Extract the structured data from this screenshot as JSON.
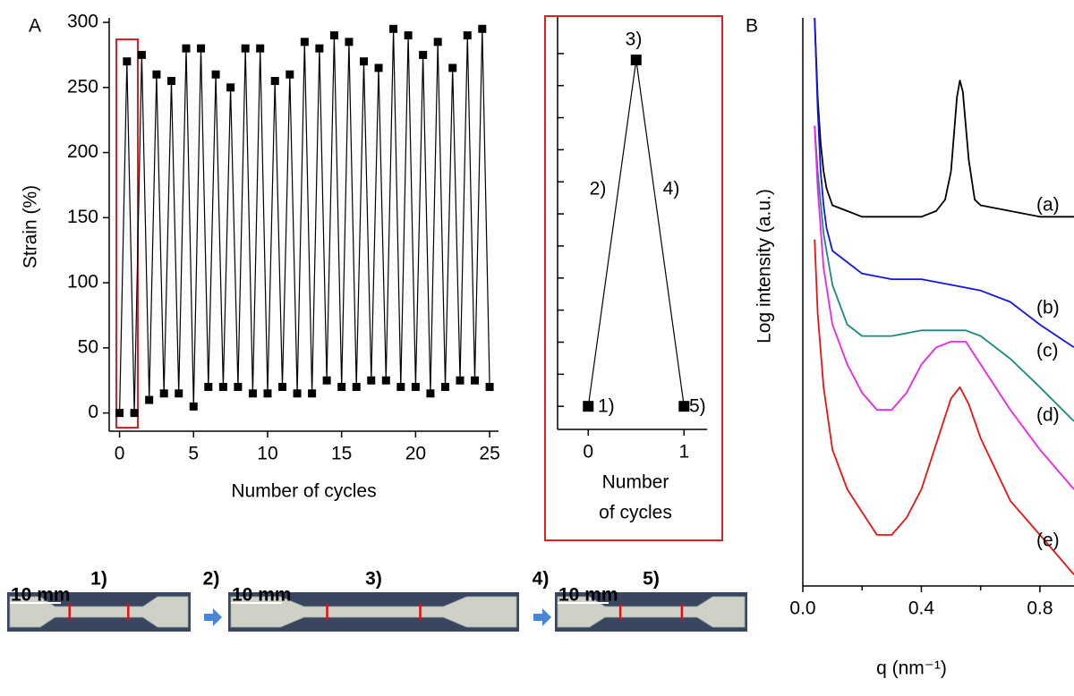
{
  "chart_data": [
    {
      "type": "line",
      "panel": "A",
      "xlabel": "Number of cycles",
      "ylabel": "Strain (%)",
      "color": "#000000",
      "markers": true,
      "x": [
        0,
        0.5,
        1,
        1.5,
        2,
        2.5,
        3,
        3.5,
        4,
        4.5,
        5,
        5.5,
        6,
        6.5,
        7,
        7.5,
        8,
        8.5,
        9,
        9.5,
        10,
        10.5,
        11,
        11.5,
        12,
        12.5,
        13,
        13.5,
        14,
        14.5,
        15,
        15.5,
        16,
        16.5,
        17,
        17.5,
        18,
        18.5,
        19,
        19.5,
        20,
        20.5,
        21,
        21.5,
        22,
        22.5,
        23,
        23.5,
        24,
        24.5,
        25
      ],
      "values": [
        0,
        270,
        0,
        275,
        10,
        260,
        15,
        255,
        15,
        280,
        5,
        280,
        20,
        260,
        20,
        250,
        20,
        280,
        15,
        280,
        15,
        255,
        20,
        260,
        15,
        285,
        15,
        280,
        25,
        290,
        20,
        285,
        20,
        270,
        25,
        265,
        25,
        295,
        20,
        290,
        20,
        275,
        15,
        285,
        20,
        265,
        25,
        290,
        25,
        295,
        20
      ],
      "xlim": [
        -0.7,
        25.6
      ],
      "ylim": [
        -14,
        300
      ],
      "xticks": [
        0,
        5,
        10,
        15,
        20,
        25
      ],
      "yticks": [
        0,
        50,
        100,
        150,
        200,
        250,
        300
      ]
    },
    {
      "type": "line",
      "color": "#000000",
      "markers": true,
      "xlabel_lines": [
        "Number",
        "of cycles"
      ],
      "x": [
        0,
        0.5,
        1
      ],
      "values": [
        0,
        270,
        0
      ],
      "annotations": [
        "1)",
        "2)",
        "3)",
        "4)",
        "5)"
      ],
      "xlim": [
        -0.32,
        1.24
      ],
      "ylim": [
        -18,
        300
      ],
      "xticks": [
        0,
        1
      ],
      "yticks": [
        0,
        25,
        50,
        75,
        100,
        125,
        150,
        175,
        200,
        225,
        250,
        275
      ],
      "show_ytick_labels": false
    },
    {
      "type": "line",
      "panel": "B",
      "xlabel": "q (nm⁻¹)",
      "ylabel": "Log intensity (a.u.)",
      "xlim": [
        0,
        0.915
      ],
      "ylim": [
        0,
        100
      ],
      "xticks": [
        {
          "value": 0,
          "label": "0.0"
        },
        0.4,
        0.8
      ],
      "minor_xticks": [
        0.2,
        0.6
      ],
      "series": [
        {
          "name": "(a)",
          "color": "#000000",
          "x": [
            0.04,
            0.05,
            0.06,
            0.07,
            0.08,
            0.1,
            0.15,
            0.2,
            0.3,
            0.4,
            0.45,
            0.48,
            0.5,
            0.52,
            0.53,
            0.54,
            0.56,
            0.58,
            0.6,
            0.7,
            0.8,
            0.915
          ],
          "values": [
            100,
            86,
            78,
            73,
            70,
            67,
            66,
            65,
            65,
            65,
            66,
            68,
            73,
            86,
            89,
            87,
            75,
            68,
            67,
            66,
            65,
            65
          ]
        },
        {
          "name": "(b)",
          "color": "#1414e6",
          "x": [
            0.04,
            0.05,
            0.06,
            0.07,
            0.08,
            0.1,
            0.15,
            0.2,
            0.3,
            0.4,
            0.5,
            0.6,
            0.7,
            0.8,
            0.915
          ],
          "values": [
            100,
            84,
            73,
            67,
            63,
            59,
            57,
            55,
            54,
            54,
            53,
            52,
            50,
            46,
            42
          ]
        },
        {
          "name": "(c)",
          "color": "#1a8a80",
          "x": [
            0.04,
            0.05,
            0.07,
            0.1,
            0.15,
            0.2,
            0.3,
            0.4,
            0.5,
            0.55,
            0.6,
            0.7,
            0.8,
            0.915
          ],
          "values": [
            81,
            73,
            62,
            53,
            46,
            44,
            44,
            45,
            45,
            45,
            44,
            40,
            35,
            29
          ]
        },
        {
          "name": "(d)",
          "color": "#ee22ee",
          "x": [
            0.04,
            0.05,
            0.07,
            0.1,
            0.15,
            0.2,
            0.25,
            0.3,
            0.35,
            0.4,
            0.45,
            0.5,
            0.55,
            0.6,
            0.7,
            0.8,
            0.915
          ],
          "values": [
            81,
            70,
            56,
            46,
            39,
            34,
            31,
            31,
            34,
            39,
            42,
            43,
            43,
            39,
            31,
            24,
            17
          ]
        },
        {
          "name": "(e)",
          "color": "#ee1111",
          "x": [
            0.04,
            0.05,
            0.07,
            0.1,
            0.15,
            0.2,
            0.25,
            0.3,
            0.35,
            0.4,
            0.45,
            0.5,
            0.53,
            0.56,
            0.6,
            0.7,
            0.8,
            0.915
          ],
          "values": [
            61,
            48,
            35,
            24,
            17,
            13,
            9,
            9,
            12,
            17,
            25,
            33,
            35,
            32,
            26,
            15,
            9,
            2
          ]
        }
      ]
    }
  ],
  "photos": [
    {
      "label": "1)",
      "scale": "10 mm"
    },
    {
      "label": "3)",
      "scale": "10 mm"
    },
    {
      "label": "5)",
      "scale": "10 mm"
    }
  ],
  "arrows": [
    "2)",
    "4)"
  ]
}
